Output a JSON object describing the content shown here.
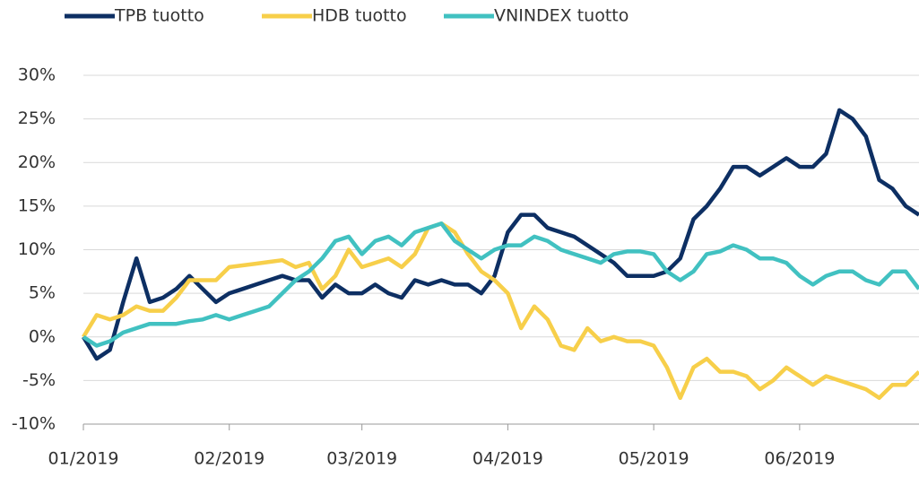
{
  "chart_data": {
    "type": "line",
    "categories": [
      "01/2019",
      null,
      null,
      null,
      null,
      null,
      null,
      null,
      null,
      null,
      null,
      "02/2019",
      null,
      null,
      null,
      null,
      null,
      null,
      null,
      null,
      null,
      "03/2019",
      null,
      null,
      null,
      null,
      null,
      null,
      null,
      null,
      null,
      null,
      "04/2019",
      null,
      null,
      null,
      null,
      null,
      null,
      null,
      null,
      null,
      null,
      "05/2019",
      null,
      null,
      null,
      null,
      null,
      null,
      null,
      null,
      null,
      null,
      "06/2019",
      null,
      null,
      null,
      null,
      null,
      null,
      null,
      null,
      null
    ],
    "series": [
      {
        "name": "TPB tuotto",
        "color": "#0d2f63",
        "values": [
          0,
          -2.5,
          -1.5,
          4,
          9,
          4,
          4.5,
          5.5,
          7,
          5.5,
          4,
          5,
          5.5,
          6,
          6.5,
          7,
          6.5,
          6.5,
          4.5,
          6,
          5,
          5,
          6,
          5,
          4.5,
          6.5,
          6,
          6.5,
          6,
          6,
          5,
          7,
          12,
          14,
          14,
          12.5,
          12,
          11.5,
          10.5,
          9.5,
          8.5,
          7,
          7,
          7,
          7.5,
          9,
          13.5,
          15,
          17,
          19.5,
          19.5,
          18.5,
          19.5,
          20.5,
          19.5,
          19.5,
          21,
          26,
          25,
          23,
          18,
          17,
          15,
          14
        ]
      },
      {
        "name": "HDB tuotto",
        "color": "#f7cf4a",
        "values": [
          0,
          2.5,
          2,
          2.5,
          3.5,
          3,
          3,
          4.5,
          6.5,
          6.5,
          6.5,
          8,
          8.2,
          8.4,
          8.6,
          8.8,
          8,
          8.5,
          5.5,
          7,
          10,
          8,
          8.5,
          9,
          8,
          9.5,
          12.5,
          13,
          12,
          9.5,
          7.5,
          6.5,
          5,
          1,
          3.5,
          2,
          -1,
          -1.5,
          1,
          -0.5,
          0,
          -0.5,
          -0.5,
          -1,
          -3.5,
          -7,
          -3.5,
          -2.5,
          -4,
          -4,
          -4.5,
          -6,
          -5,
          -3.5,
          -4.5,
          -5.5,
          -4.5,
          -5,
          -5.5,
          -6,
          -7,
          -5.5,
          -5.5,
          -4
        ]
      },
      {
        "name": "VNINDEX tuotto",
        "color": "#41c1c1",
        "values": [
          0,
          -1,
          -0.5,
          0.5,
          1,
          1.5,
          1.5,
          1.5,
          1.8,
          2,
          2.5,
          2,
          2.5,
          3,
          3.5,
          5,
          6.5,
          7.5,
          9,
          11,
          11.5,
          9.5,
          11,
          11.5,
          10.5,
          12,
          12.5,
          13,
          11,
          10,
          9,
          10,
          10.5,
          10.5,
          11.5,
          11,
          10,
          9.5,
          9,
          8.5,
          9.5,
          9.8,
          9.8,
          9.5,
          7.5,
          6.5,
          7.5,
          9.5,
          9.8,
          10.5,
          10,
          9,
          9,
          8.5,
          7,
          6,
          7,
          7.5,
          7.5,
          6.5,
          6,
          7.5,
          7.5,
          5.5
        ]
      }
    ],
    "ylim": [
      -10,
      30
    ],
    "yticks": [
      {
        "value": -10,
        "label": "-10%"
      },
      {
        "value": -5,
        "label": "-5%"
      },
      {
        "value": 0,
        "label": "0%"
      },
      {
        "value": 5,
        "label": "5%"
      },
      {
        "value": 10,
        "label": "10%"
      },
      {
        "value": 15,
        "label": "15%"
      },
      {
        "value": 20,
        "label": "20%"
      },
      {
        "value": 25,
        "label": "25%"
      },
      {
        "value": 30,
        "label": "30%"
      }
    ],
    "grid": true,
    "legend": "top"
  }
}
